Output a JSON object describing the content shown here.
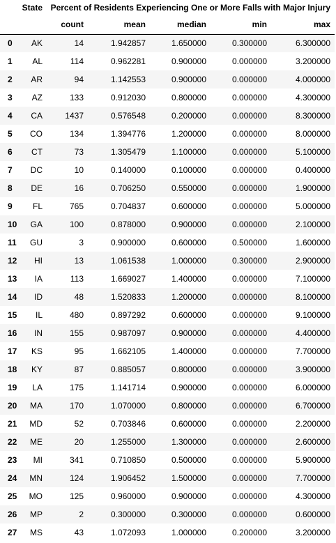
{
  "table": {
    "state_header": "State",
    "group_header": "Percent of Residents Experiencing One or More Falls with Major Injury",
    "columns": [
      "count",
      "mean",
      "median",
      "min",
      "max"
    ],
    "rows": [
      {
        "index": "0",
        "state": "AK",
        "count": "14",
        "mean": "1.942857",
        "median": "1.650000",
        "min": "0.300000",
        "max": "6.300000"
      },
      {
        "index": "1",
        "state": "AL",
        "count": "114",
        "mean": "0.962281",
        "median": "0.900000",
        "min": "0.000000",
        "max": "3.200000"
      },
      {
        "index": "2",
        "state": "AR",
        "count": "94",
        "mean": "1.142553",
        "median": "0.900000",
        "min": "0.000000",
        "max": "4.000000"
      },
      {
        "index": "3",
        "state": "AZ",
        "count": "133",
        "mean": "0.912030",
        "median": "0.800000",
        "min": "0.000000",
        "max": "4.300000"
      },
      {
        "index": "4",
        "state": "CA",
        "count": "1437",
        "mean": "0.576548",
        "median": "0.200000",
        "min": "0.000000",
        "max": "8.300000"
      },
      {
        "index": "5",
        "state": "CO",
        "count": "134",
        "mean": "1.394776",
        "median": "1.200000",
        "min": "0.000000",
        "max": "8.000000"
      },
      {
        "index": "6",
        "state": "CT",
        "count": "73",
        "mean": "1.305479",
        "median": "1.100000",
        "min": "0.000000",
        "max": "5.100000"
      },
      {
        "index": "7",
        "state": "DC",
        "count": "10",
        "mean": "0.140000",
        "median": "0.100000",
        "min": "0.000000",
        "max": "0.400000"
      },
      {
        "index": "8",
        "state": "DE",
        "count": "16",
        "mean": "0.706250",
        "median": "0.550000",
        "min": "0.000000",
        "max": "1.900000"
      },
      {
        "index": "9",
        "state": "FL",
        "count": "765",
        "mean": "0.704837",
        "median": "0.600000",
        "min": "0.000000",
        "max": "5.000000"
      },
      {
        "index": "10",
        "state": "GA",
        "count": "100",
        "mean": "0.878000",
        "median": "0.900000",
        "min": "0.000000",
        "max": "2.100000"
      },
      {
        "index": "11",
        "state": "GU",
        "count": "3",
        "mean": "0.900000",
        "median": "0.600000",
        "min": "0.500000",
        "max": "1.600000"
      },
      {
        "index": "12",
        "state": "HI",
        "count": "13",
        "mean": "1.061538",
        "median": "1.000000",
        "min": "0.300000",
        "max": "2.900000"
      },
      {
        "index": "13",
        "state": "IA",
        "count": "113",
        "mean": "1.669027",
        "median": "1.400000",
        "min": "0.000000",
        "max": "7.100000"
      },
      {
        "index": "14",
        "state": "ID",
        "count": "48",
        "mean": "1.520833",
        "median": "1.200000",
        "min": "0.000000",
        "max": "8.100000"
      },
      {
        "index": "15",
        "state": "IL",
        "count": "480",
        "mean": "0.897292",
        "median": "0.600000",
        "min": "0.000000",
        "max": "9.100000"
      },
      {
        "index": "16",
        "state": "IN",
        "count": "155",
        "mean": "0.987097",
        "median": "0.900000",
        "min": "0.000000",
        "max": "4.400000"
      },
      {
        "index": "17",
        "state": "KS",
        "count": "95",
        "mean": "1.662105",
        "median": "1.400000",
        "min": "0.000000",
        "max": "7.700000"
      },
      {
        "index": "18",
        "state": "KY",
        "count": "87",
        "mean": "0.885057",
        "median": "0.800000",
        "min": "0.000000",
        "max": "3.900000"
      },
      {
        "index": "19",
        "state": "LA",
        "count": "175",
        "mean": "1.141714",
        "median": "0.900000",
        "min": "0.000000",
        "max": "6.000000"
      },
      {
        "index": "20",
        "state": "MA",
        "count": "170",
        "mean": "1.070000",
        "median": "0.800000",
        "min": "0.000000",
        "max": "6.700000"
      },
      {
        "index": "21",
        "state": "MD",
        "count": "52",
        "mean": "0.703846",
        "median": "0.600000",
        "min": "0.000000",
        "max": "2.200000"
      },
      {
        "index": "22",
        "state": "ME",
        "count": "20",
        "mean": "1.255000",
        "median": "1.300000",
        "min": "0.000000",
        "max": "2.600000"
      },
      {
        "index": "23",
        "state": "MI",
        "count": "341",
        "mean": "0.710850",
        "median": "0.500000",
        "min": "0.000000",
        "max": "5.900000"
      },
      {
        "index": "24",
        "state": "MN",
        "count": "124",
        "mean": "1.906452",
        "median": "1.500000",
        "min": "0.000000",
        "max": "7.700000"
      },
      {
        "index": "25",
        "state": "MO",
        "count": "125",
        "mean": "0.960000",
        "median": "0.900000",
        "min": "0.000000",
        "max": "4.300000"
      },
      {
        "index": "26",
        "state": "MP",
        "count": "2",
        "mean": "0.300000",
        "median": "0.300000",
        "min": "0.000000",
        "max": "0.600000"
      },
      {
        "index": "27",
        "state": "MS",
        "count": "43",
        "mean": "1.072093",
        "median": "1.000000",
        "min": "0.200000",
        "max": "3.200000"
      }
    ]
  }
}
